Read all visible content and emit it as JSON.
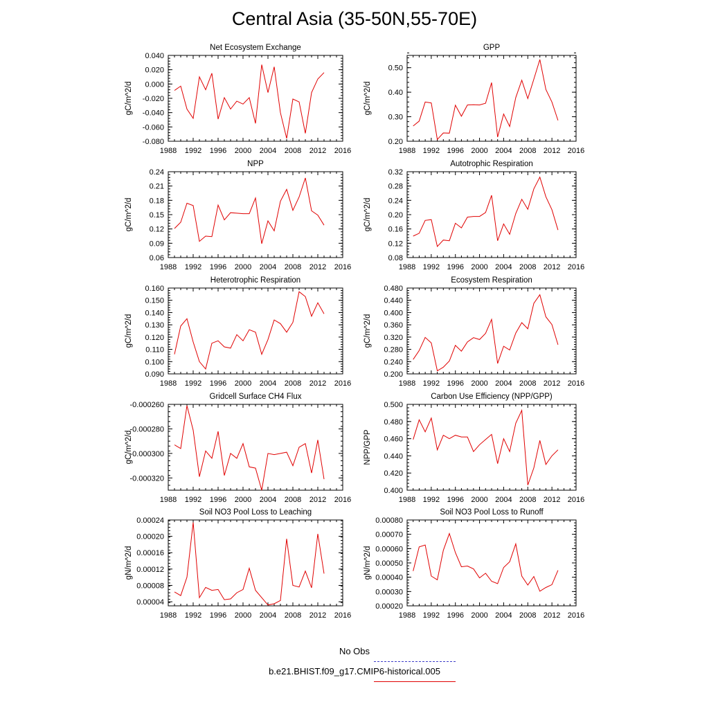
{
  "figure": {
    "title": "Central Asia (35-50N,55-70E)"
  },
  "legend": {
    "obs_label": "No Obs",
    "model_label": "b.e21.BHIST.f09_g17.CMIP6-historical.005"
  },
  "colors": {
    "model_line": "#e00000",
    "obs_line": "#3c3cc8"
  },
  "chart_data": [
    {
      "type": "line",
      "title": "Net Ecosystem Exchange",
      "ylabel": "gC/m^2/d",
      "xlim": [
        1988,
        2016
      ],
      "xticks": [
        1988,
        1992,
        1996,
        2000,
        2004,
        2008,
        2012,
        2016
      ],
      "xtick_labels": [
        "1988",
        "1992",
        "1996",
        "2000",
        "2004",
        "2008",
        "2012",
        "2016"
      ],
      "ylim": [
        -0.08,
        0.04
      ],
      "yticks": [
        -0.08,
        -0.06,
        -0.04,
        -0.02,
        0,
        0.02,
        0.04
      ],
      "ytick_labels": [
        "-0.080",
        "-0.060",
        "-0.040",
        "-0.020",
        "0.000",
        "0.020",
        "0.040"
      ],
      "x": [
        1989,
        1990,
        1991,
        1992,
        1993,
        1994,
        1995,
        1996,
        1997,
        1998,
        1999,
        2000,
        2001,
        2002,
        2003,
        2004,
        2005,
        2006,
        2007,
        2008,
        2009,
        2010,
        2011,
        2012,
        2013
      ],
      "series": [
        {
          "name": "b.e21.BHIST.f09_g17.CMIP6-historical.005",
          "values": [
            -0.009,
            -0.003,
            -0.035,
            -0.048,
            0.01,
            -0.008,
            0.015,
            -0.049,
            -0.019,
            -0.035,
            -0.024,
            -0.028,
            -0.019,
            -0.055,
            0.027,
            -0.012,
            0.024,
            -0.04,
            -0.076,
            -0.021,
            -0.025,
            -0.069,
            -0.012,
            0.007,
            0.016
          ]
        }
      ]
    },
    {
      "type": "line",
      "title": "GPP",
      "ylabel": "gC/m^2/d",
      "xlim": [
        1988,
        2016
      ],
      "xticks": [
        1988,
        1992,
        1996,
        2000,
        2004,
        2008,
        2012,
        2016
      ],
      "xtick_labels": [
        "1988",
        "1992",
        "1996",
        "2000",
        "2004",
        "2008",
        "2012",
        "2016"
      ],
      "ylim": [
        0.2,
        0.55
      ],
      "yticks": [
        0.2,
        0.3,
        0.4,
        0.5
      ],
      "ytick_labels": [
        "0.20",
        "0.30",
        "0.40",
        "0.50"
      ],
      "x": [
        1989,
        1990,
        1991,
        1992,
        1993,
        1994,
        1995,
        1996,
        1997,
        1998,
        1999,
        2000,
        2001,
        2002,
        2003,
        2004,
        2005,
        2006,
        2007,
        2008,
        2009,
        2010,
        2011,
        2012,
        2013
      ],
      "series": [
        {
          "name": "b.e21.BHIST.f09_g17.CMIP6-historical.005",
          "values": [
            0.262,
            0.282,
            0.36,
            0.356,
            0.207,
            0.234,
            0.233,
            0.347,
            0.302,
            0.348,
            0.349,
            0.348,
            0.355,
            0.439,
            0.217,
            0.311,
            0.26,
            0.378,
            0.449,
            0.374,
            0.453,
            0.533,
            0.411,
            0.36,
            0.285
          ]
        }
      ]
    },
    {
      "type": "line",
      "title": "NPP",
      "ylabel": "gC/m^2/d",
      "xlim": [
        1988,
        2016
      ],
      "xticks": [
        1988,
        1992,
        1996,
        2000,
        2004,
        2008,
        2012,
        2016
      ],
      "xtick_labels": [
        "1988",
        "1992",
        "1996",
        "2000",
        "2004",
        "2008",
        "2012",
        "2016"
      ],
      "ylim": [
        0.06,
        0.24
      ],
      "yticks": [
        0.06,
        0.09,
        0.12,
        0.15,
        0.18,
        0.21,
        0.24
      ],
      "ytick_labels": [
        "0.06",
        "0.09",
        "0.12",
        "0.15",
        "0.18",
        "0.21",
        "0.24"
      ],
      "x": [
        1989,
        1990,
        1991,
        1992,
        1993,
        1994,
        1995,
        1996,
        1997,
        1998,
        1999,
        2000,
        2001,
        2002,
        2003,
        2004,
        2005,
        2006,
        2007,
        2008,
        2009,
        2010,
        2011,
        2012,
        2013
      ],
      "series": [
        {
          "name": "b.e21.BHIST.f09_g17.CMIP6-historical.005",
          "values": [
            0.121,
            0.134,
            0.174,
            0.169,
            0.094,
            0.105,
            0.104,
            0.17,
            0.139,
            0.154,
            0.153,
            0.152,
            0.152,
            0.185,
            0.089,
            0.137,
            0.116,
            0.178,
            0.203,
            0.159,
            0.187,
            0.227,
            0.158,
            0.149,
            0.128
          ]
        }
      ]
    },
    {
      "type": "line",
      "title": "Autotrophic Respiration",
      "ylabel": "gC/m^2/d",
      "xlim": [
        1988,
        2016
      ],
      "xticks": [
        1988,
        1992,
        1996,
        2000,
        2004,
        2008,
        2012,
        2016
      ],
      "xtick_labels": [
        "1988",
        "1992",
        "1996",
        "2000",
        "2004",
        "2008",
        "2012",
        "2016"
      ],
      "ylim": [
        0.08,
        0.32
      ],
      "yticks": [
        0.08,
        0.12,
        0.16,
        0.2,
        0.24,
        0.28,
        0.32
      ],
      "ytick_labels": [
        "0.08",
        "0.12",
        "0.16",
        "0.20",
        "0.24",
        "0.28",
        "0.32"
      ],
      "x": [
        1989,
        1990,
        1991,
        1992,
        1993,
        1994,
        1995,
        1996,
        1997,
        1998,
        1999,
        2000,
        2001,
        2002,
        2003,
        2004,
        2005,
        2006,
        2007,
        2008,
        2009,
        2010,
        2011,
        2012,
        2013
      ],
      "series": [
        {
          "name": "b.e21.BHIST.f09_g17.CMIP6-historical.005",
          "values": [
            0.14,
            0.148,
            0.184,
            0.186,
            0.111,
            0.129,
            0.127,
            0.176,
            0.163,
            0.193,
            0.195,
            0.195,
            0.206,
            0.254,
            0.127,
            0.174,
            0.145,
            0.203,
            0.243,
            0.215,
            0.272,
            0.305,
            0.25,
            0.214,
            0.157
          ]
        }
      ]
    },
    {
      "type": "line",
      "title": "Heterotrophic Respiration",
      "ylabel": "gC/m^2/d",
      "xlim": [
        1988,
        2016
      ],
      "xticks": [
        1988,
        1992,
        1996,
        2000,
        2004,
        2008,
        2012,
        2016
      ],
      "xtick_labels": [
        "1988",
        "1992",
        "1996",
        "2000",
        "2004",
        "2008",
        "2012",
        "2016"
      ],
      "ylim": [
        0.09,
        0.16
      ],
      "yticks": [
        0.09,
        0.1,
        0.11,
        0.12,
        0.13,
        0.14,
        0.15,
        0.16
      ],
      "ytick_labels": [
        "0.090",
        "0.100",
        "0.110",
        "0.120",
        "0.130",
        "0.140",
        "0.150",
        "0.160"
      ],
      "x": [
        1989,
        1990,
        1991,
        1992,
        1993,
        1994,
        1995,
        1996,
        1997,
        1998,
        1999,
        2000,
        2001,
        2002,
        2003,
        2004,
        2005,
        2006,
        2007,
        2008,
        2009,
        2010,
        2011,
        2012,
        2013
      ],
      "series": [
        {
          "name": "b.e21.BHIST.f09_g17.CMIP6-historical.005",
          "values": [
            0.106,
            0.129,
            0.135,
            0.116,
            0.1,
            0.094,
            0.115,
            0.117,
            0.112,
            0.111,
            0.122,
            0.117,
            0.126,
            0.124,
            0.106,
            0.118,
            0.134,
            0.131,
            0.124,
            0.132,
            0.157,
            0.153,
            0.137,
            0.148,
            0.139
          ]
        }
      ]
    },
    {
      "type": "line",
      "title": "Ecosystem Respiration",
      "ylabel": "gC/m^2/d",
      "xlim": [
        1988,
        2016
      ],
      "xticks": [
        1988,
        1992,
        1996,
        2000,
        2004,
        2008,
        2012,
        2016
      ],
      "xtick_labels": [
        "1988",
        "1992",
        "1996",
        "2000",
        "2004",
        "2008",
        "2012",
        "2016"
      ],
      "ylim": [
        0.2,
        0.48
      ],
      "yticks": [
        0.2,
        0.24,
        0.28,
        0.32,
        0.36,
        0.4,
        0.44,
        0.48
      ],
      "ytick_labels": [
        "0.200",
        "0.240",
        "0.280",
        "0.320",
        "0.360",
        "0.400",
        "0.440",
        "0.480"
      ],
      "x": [
        1989,
        1990,
        1991,
        1992,
        1993,
        1994,
        1995,
        1996,
        1997,
        1998,
        1999,
        2000,
        2001,
        2002,
        2003,
        2004,
        2005,
        2006,
        2007,
        2008,
        2009,
        2010,
        2011,
        2012,
        2013
      ],
      "series": [
        {
          "name": "b.e21.BHIST.f09_g17.CMIP6-historical.005",
          "values": [
            0.247,
            0.276,
            0.319,
            0.301,
            0.21,
            0.222,
            0.242,
            0.293,
            0.274,
            0.304,
            0.318,
            0.312,
            0.332,
            0.378,
            0.234,
            0.29,
            0.278,
            0.333,
            0.367,
            0.347,
            0.43,
            0.458,
            0.386,
            0.361,
            0.295
          ]
        }
      ]
    },
    {
      "type": "line",
      "title": "Gridcell Surface CH4 Flux",
      "ylabel": "gC/m^2/d",
      "xlim": [
        1988,
        2016
      ],
      "xticks": [
        1988,
        1992,
        1996,
        2000,
        2004,
        2008,
        2012,
        2016
      ],
      "xtick_labels": [
        "1988",
        "1992",
        "1996",
        "2000",
        "2004",
        "2008",
        "2012",
        "2016"
      ],
      "ylim": [
        -0.00033,
        -0.00026
      ],
      "yticks": [
        -0.00032,
        -0.0003,
        -0.00028,
        -0.00026
      ],
      "ytick_labels": [
        "-0.000320",
        "-0.000300",
        "-0.000280",
        "-0.000260"
      ],
      "x": [
        1989,
        1990,
        1991,
        1992,
        1993,
        1994,
        1995,
        1996,
        1997,
        1998,
        1999,
        2000,
        2001,
        2002,
        2003,
        2004,
        2005,
        2006,
        2007,
        2008,
        2009,
        2010,
        2011,
        2012,
        2013
      ],
      "series": [
        {
          "name": "b.e21.BHIST.f09_g17.CMIP6-historical.005",
          "values": [
            -0.000293,
            -0.000296,
            -0.000261,
            -0.000281,
            -0.000319,
            -0.000298,
            -0.000304,
            -0.000282,
            -0.000318,
            -0.0003,
            -0.000304,
            -0.000292,
            -0.000311,
            -0.000312,
            -0.00033,
            -0.0003,
            -0.000301,
            -0.0003,
            -0.000299,
            -0.00031,
            -0.000295,
            -0.000292,
            -0.000316,
            -0.000289,
            -0.000321
          ]
        }
      ]
    },
    {
      "type": "line",
      "title": "Carbon Use Efficiency (NPP/GPP)",
      "ylabel": "NPP/GPP",
      "xlim": [
        1988,
        2016
      ],
      "xticks": [
        1988,
        1992,
        1996,
        2000,
        2004,
        2008,
        2012,
        2016
      ],
      "xtick_labels": [
        "1988",
        "1992",
        "1996",
        "2000",
        "2004",
        "2008",
        "2012",
        "2016"
      ],
      "ylim": [
        0.4,
        0.5
      ],
      "yticks": [
        0.4,
        0.42,
        0.44,
        0.46,
        0.48,
        0.5
      ],
      "ytick_labels": [
        "0.400",
        "0.420",
        "0.440",
        "0.460",
        "0.480",
        "0.500"
      ],
      "x": [
        1989,
        1990,
        1991,
        1992,
        1993,
        1994,
        1995,
        1996,
        1997,
        1998,
        1999,
        2000,
        2001,
        2002,
        2003,
        2004,
        2005,
        2006,
        2007,
        2008,
        2009,
        2010,
        2011,
        2012,
        2013
      ],
      "series": [
        {
          "name": "b.e21.BHIST.f09_g17.CMIP6-historical.005",
          "values": [
            0.459,
            0.482,
            0.468,
            0.484,
            0.447,
            0.464,
            0.46,
            0.464,
            0.462,
            0.462,
            0.445,
            0.453,
            0.459,
            0.465,
            0.431,
            0.46,
            0.445,
            0.478,
            0.493,
            0.406,
            0.426,
            0.458,
            0.43,
            0.44,
            0.447
          ]
        }
      ]
    },
    {
      "type": "line",
      "title": "Soil NO3 Pool Loss to Leaching",
      "ylabel": "gN/m^2/d",
      "xlim": [
        1988,
        2016
      ],
      "xticks": [
        1988,
        1992,
        1996,
        2000,
        2004,
        2008,
        2012,
        2016
      ],
      "xtick_labels": [
        "1988",
        "1992",
        "1996",
        "2000",
        "2004",
        "2008",
        "2012",
        "2016"
      ],
      "ylim": [
        3e-05,
        0.00024
      ],
      "yticks": [
        4e-05,
        8e-05,
        0.00012,
        0.00016,
        0.0002,
        0.00024
      ],
      "ytick_labels": [
        "0.00004",
        "0.00008",
        "0.00012",
        "0.00016",
        "0.00020",
        "0.00024"
      ],
      "x": [
        1989,
        1990,
        1991,
        1992,
        1993,
        1994,
        1995,
        1996,
        1997,
        1998,
        1999,
        2000,
        2001,
        2002,
        2003,
        2004,
        2005,
        2006,
        2007,
        2008,
        2009,
        2010,
        2011,
        2012,
        2013
      ],
      "series": [
        {
          "name": "b.e21.BHIST.f09_g17.CMIP6-historical.005",
          "values": [
            6.4e-05,
            5.5e-05,
            0.0001,
            0.000234,
            5e-05,
            7.5e-05,
            6.8e-05,
            7e-05,
            4.5e-05,
            4.7e-05,
            6.2e-05,
            7e-05,
            0.000122,
            6.8e-05,
            5e-05,
            3.2e-05,
            3.5e-05,
            4.3e-05,
            0.000194,
            8e-05,
            7.6e-05,
            0.000115,
            7.4e-05,
            0.000206,
            0.000109
          ]
        }
      ]
    },
    {
      "type": "line",
      "title": "Soil NO3 Pool Loss to Runoff",
      "ylabel": "gN/m^2/d",
      "xlim": [
        1988,
        2016
      ],
      "xticks": [
        1988,
        1992,
        1996,
        2000,
        2004,
        2008,
        2012,
        2016
      ],
      "xtick_labels": [
        "1988",
        "1992",
        "1996",
        "2000",
        "2004",
        "2008",
        "2012",
        "2016"
      ],
      "ylim": [
        0.0002,
        0.0008
      ],
      "yticks": [
        0.0002,
        0.0003,
        0.0004,
        0.0005,
        0.0006,
        0.0007,
        0.0008
      ],
      "ytick_labels": [
        "0.00020",
        "0.00030",
        "0.00040",
        "0.00050",
        "0.00060",
        "0.00070",
        "0.00080"
      ],
      "x": [
        1989,
        1990,
        1991,
        1992,
        1993,
        1994,
        1995,
        1996,
        1997,
        1998,
        1999,
        2000,
        2001,
        2002,
        2003,
        2004,
        2005,
        2006,
        2007,
        2008,
        2009,
        2010,
        2011,
        2012,
        2013
      ],
      "series": [
        {
          "name": "b.e21.BHIST.f09_g17.CMIP6-historical.005",
          "values": [
            0.000443,
            0.000612,
            0.000625,
            0.000408,
            0.000382,
            0.000588,
            0.000705,
            0.000572,
            0.000473,
            0.000478,
            0.000458,
            0.000395,
            0.000428,
            0.000372,
            0.000355,
            0.000468,
            0.000508,
            0.000633,
            0.000408,
            0.000345,
            0.000405,
            0.000302,
            0.000328,
            0.000348,
            0.000448
          ]
        }
      ]
    }
  ]
}
